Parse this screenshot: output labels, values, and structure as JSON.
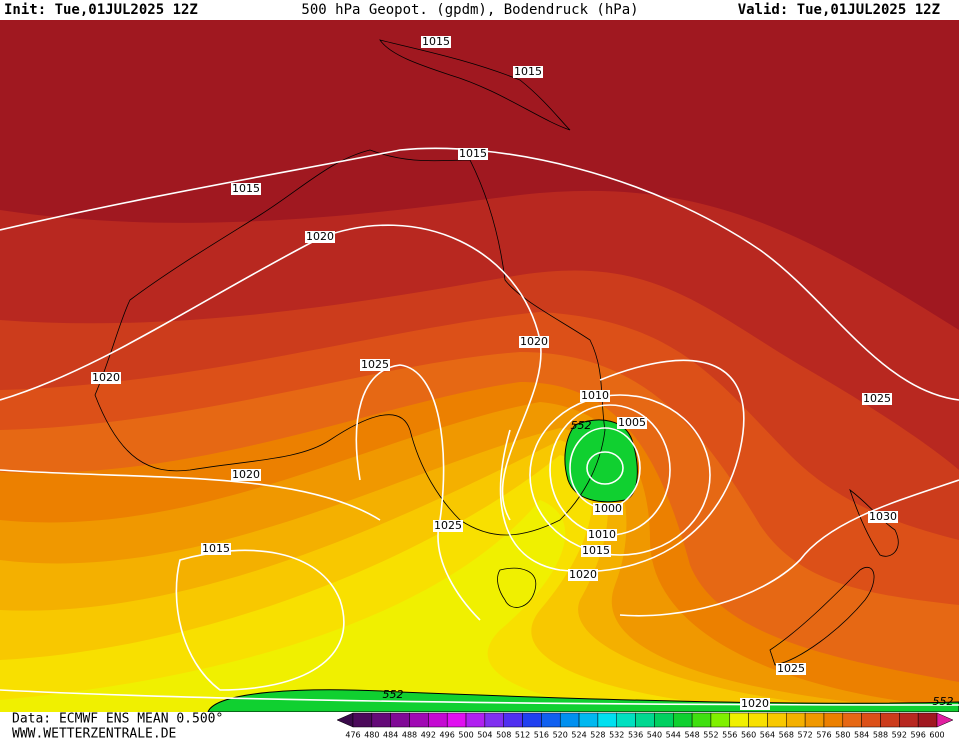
{
  "header": {
    "init": "Init: Tue,01JUL2025 12Z",
    "title": "500 hPa Geopot. (gpdm), Bodendruck (hPa)",
    "valid": "Valid: Tue,01JUL2025 12Z"
  },
  "isobar_labels": [
    1015,
    1015,
    1015,
    1015,
    1020,
    1020,
    1025,
    1020,
    1010,
    1005,
    1025,
    1020,
    1000,
    1030,
    1025,
    1010,
    1015,
    1015,
    1020,
    1025,
    1020
  ],
  "height_labels": [
    552,
    552,
    552
  ],
  "legend": {
    "levels": [
      476,
      480,
      484,
      488,
      492,
      496,
      500,
      504,
      508,
      512,
      516,
      520,
      524,
      528,
      532,
      536,
      540,
      544,
      548,
      552,
      556,
      560,
      564,
      568,
      572,
      576,
      580,
      584,
      588,
      592,
      596,
      600
    ],
    "colors": [
      "#3a0a4a",
      "#4b0a5a",
      "#640a78",
      "#800a96",
      "#a00ab4",
      "#c40ad2",
      "#e010f0",
      "#b020f0",
      "#8030f0",
      "#5030f0",
      "#2040f0",
      "#1060f0",
      "#0090f0",
      "#00b8f0",
      "#00e0f0",
      "#00e0c0",
      "#00d890",
      "#00d060",
      "#10d030",
      "#40e010",
      "#80f000",
      "#f0f000",
      "#f8e000",
      "#f8c800",
      "#f4b000",
      "#f09800",
      "#ec8000",
      "#e66814",
      "#dc5018",
      "#cc3c1c",
      "#b82820",
      "#a01820",
      "#e020a0"
    ]
  },
  "footer": {
    "source": "Data: ECMWF ENS MEAN 0.500°",
    "url": "WWW.WETTERZENTRALE.DE"
  }
}
